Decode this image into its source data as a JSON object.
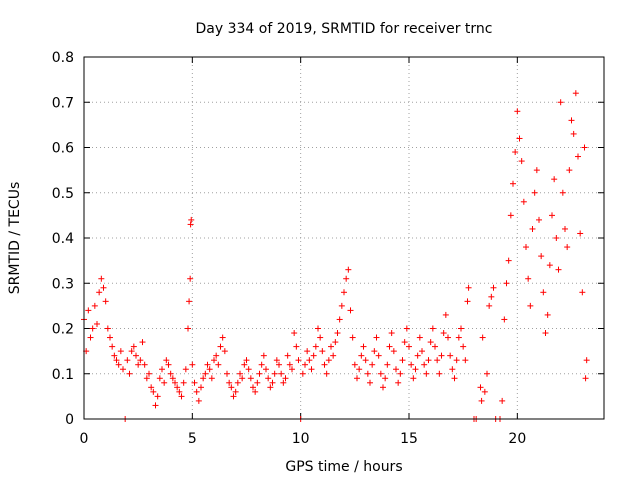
{
  "chart_data": {
    "type": "scatter",
    "title": "Day 334 of 2019, SRMTID for receiver trnc",
    "xlabel": "GPS time / hours",
    "ylabel": "SRMTID / TECUs",
    "xlim": [
      0,
      24
    ],
    "ylim": [
      0,
      0.8
    ],
    "xticks": [
      0,
      5,
      10,
      15,
      20
    ],
    "yticks": [
      0,
      0.1,
      0.2,
      0.3,
      0.4,
      0.5,
      0.6,
      0.7,
      0.8
    ],
    "xtick_labels": [
      "0",
      "5",
      "10",
      "15",
      "20"
    ],
    "ytick_labels": [
      "0",
      "0.1",
      "0.2",
      "0.3",
      "0.4",
      "0.5",
      "0.6",
      "0.7",
      "0.8"
    ],
    "grid": true,
    "marker": "+",
    "color": "#ff0000",
    "series": [
      {
        "name": "SRMTID",
        "points": [
          [
            0.0,
            0.22
          ],
          [
            0.1,
            0.15
          ],
          [
            0.2,
            0.24
          ],
          [
            0.3,
            0.18
          ],
          [
            0.4,
            0.2
          ],
          [
            0.5,
            0.25
          ],
          [
            0.6,
            0.21
          ],
          [
            0.7,
            0.28
          ],
          [
            0.8,
            0.31
          ],
          [
            0.9,
            0.29
          ],
          [
            1.0,
            0.26
          ],
          [
            1.1,
            0.2
          ],
          [
            1.2,
            0.18
          ],
          [
            1.3,
            0.16
          ],
          [
            1.4,
            0.14
          ],
          [
            1.5,
            0.13
          ],
          [
            1.6,
            0.12
          ],
          [
            1.7,
            0.15
          ],
          [
            1.8,
            0.11
          ],
          [
            1.9,
            0.0
          ],
          [
            2.0,
            0.13
          ],
          [
            2.1,
            0.1
          ],
          [
            2.2,
            0.15
          ],
          [
            2.3,
            0.16
          ],
          [
            2.4,
            0.14
          ],
          [
            2.5,
            0.12
          ],
          [
            2.6,
            0.13
          ],
          [
            2.7,
            0.17
          ],
          [
            2.8,
            0.12
          ],
          [
            2.9,
            0.09
          ],
          [
            3.0,
            0.1
          ],
          [
            3.1,
            0.07
          ],
          [
            3.2,
            0.06
          ],
          [
            3.3,
            0.03
          ],
          [
            3.4,
            0.05
          ],
          [
            3.5,
            0.09
          ],
          [
            3.6,
            0.11
          ],
          [
            3.7,
            0.08
          ],
          [
            3.8,
            0.13
          ],
          [
            3.9,
            0.12
          ],
          [
            4.0,
            0.1
          ],
          [
            4.1,
            0.09
          ],
          [
            4.2,
            0.08
          ],
          [
            4.3,
            0.07
          ],
          [
            4.4,
            0.06
          ],
          [
            4.5,
            0.05
          ],
          [
            4.6,
            0.08
          ],
          [
            4.7,
            0.11
          ],
          [
            4.8,
            0.2
          ],
          [
            4.85,
            0.26
          ],
          [
            4.9,
            0.31
          ],
          [
            4.92,
            0.43
          ],
          [
            4.95,
            0.44
          ],
          [
            5.0,
            0.12
          ],
          [
            5.1,
            0.08
          ],
          [
            5.2,
            0.06
          ],
          [
            5.3,
            0.04
          ],
          [
            5.4,
            0.07
          ],
          [
            5.5,
            0.09
          ],
          [
            5.6,
            0.1
          ],
          [
            5.7,
            0.12
          ],
          [
            5.8,
            0.11
          ],
          [
            5.9,
            0.09
          ],
          [
            6.0,
            0.13
          ],
          [
            6.1,
            0.14
          ],
          [
            6.2,
            0.12
          ],
          [
            6.3,
            0.16
          ],
          [
            6.4,
            0.18
          ],
          [
            6.5,
            0.15
          ],
          [
            6.6,
            0.1
          ],
          [
            6.7,
            0.08
          ],
          [
            6.8,
            0.07
          ],
          [
            6.9,
            0.05
          ],
          [
            7.0,
            0.06
          ],
          [
            7.1,
            0.08
          ],
          [
            7.2,
            0.1
          ],
          [
            7.3,
            0.09
          ],
          [
            7.4,
            0.12
          ],
          [
            7.5,
            0.13
          ],
          [
            7.6,
            0.11
          ],
          [
            7.7,
            0.09
          ],
          [
            7.8,
            0.07
          ],
          [
            7.9,
            0.06
          ],
          [
            8.0,
            0.08
          ],
          [
            8.1,
            0.1
          ],
          [
            8.2,
            0.12
          ],
          [
            8.3,
            0.14
          ],
          [
            8.4,
            0.11
          ],
          [
            8.5,
            0.09
          ],
          [
            8.6,
            0.07
          ],
          [
            8.7,
            0.08
          ],
          [
            8.8,
            0.1
          ],
          [
            8.9,
            0.13
          ],
          [
            9.0,
            0.12
          ],
          [
            9.1,
            0.1
          ],
          [
            9.2,
            0.08
          ],
          [
            9.3,
            0.09
          ],
          [
            9.4,
            0.14
          ],
          [
            9.5,
            0.12
          ],
          [
            9.6,
            0.11
          ],
          [
            9.7,
            0.19
          ],
          [
            9.8,
            0.16
          ],
          [
            9.9,
            0.13
          ],
          [
            10.0,
            0.0
          ],
          [
            10.1,
            0.1
          ],
          [
            10.2,
            0.12
          ],
          [
            10.3,
            0.15
          ],
          [
            10.4,
            0.13
          ],
          [
            10.5,
            0.11
          ],
          [
            10.6,
            0.14
          ],
          [
            10.7,
            0.16
          ],
          [
            10.8,
            0.2
          ],
          [
            10.9,
            0.18
          ],
          [
            11.0,
            0.15
          ],
          [
            11.1,
            0.12
          ],
          [
            11.2,
            0.1
          ],
          [
            11.3,
            0.13
          ],
          [
            11.4,
            0.16
          ],
          [
            11.5,
            0.14
          ],
          [
            11.6,
            0.17
          ],
          [
            11.7,
            0.19
          ],
          [
            11.8,
            0.22
          ],
          [
            11.9,
            0.25
          ],
          [
            12.0,
            0.28
          ],
          [
            12.1,
            0.31
          ],
          [
            12.2,
            0.33
          ],
          [
            12.3,
            0.24
          ],
          [
            12.4,
            0.18
          ],
          [
            12.5,
            0.12
          ],
          [
            12.6,
            0.09
          ],
          [
            12.7,
            0.11
          ],
          [
            12.8,
            0.14
          ],
          [
            12.9,
            0.16
          ],
          [
            13.0,
            0.13
          ],
          [
            13.1,
            0.1
          ],
          [
            13.2,
            0.08
          ],
          [
            13.3,
            0.12
          ],
          [
            13.4,
            0.15
          ],
          [
            13.5,
            0.18
          ],
          [
            13.6,
            0.14
          ],
          [
            13.7,
            0.1
          ],
          [
            13.8,
            0.07
          ],
          [
            13.9,
            0.09
          ],
          [
            14.0,
            0.12
          ],
          [
            14.1,
            0.16
          ],
          [
            14.2,
            0.19
          ],
          [
            14.3,
            0.15
          ],
          [
            14.4,
            0.11
          ],
          [
            14.5,
            0.08
          ],
          [
            14.6,
            0.1
          ],
          [
            14.7,
            0.13
          ],
          [
            14.8,
            0.17
          ],
          [
            14.9,
            0.2
          ],
          [
            15.0,
            0.16
          ],
          [
            15.1,
            0.12
          ],
          [
            15.2,
            0.09
          ],
          [
            15.3,
            0.11
          ],
          [
            15.4,
            0.14
          ],
          [
            15.5,
            0.18
          ],
          [
            15.6,
            0.15
          ],
          [
            15.7,
            0.12
          ],
          [
            15.8,
            0.1
          ],
          [
            15.9,
            0.13
          ],
          [
            16.0,
            0.17
          ],
          [
            16.1,
            0.2
          ],
          [
            16.2,
            0.16
          ],
          [
            16.3,
            0.13
          ],
          [
            16.4,
            0.1
          ],
          [
            16.5,
            0.14
          ],
          [
            16.6,
            0.19
          ],
          [
            16.7,
            0.23
          ],
          [
            16.8,
            0.18
          ],
          [
            16.9,
            0.14
          ],
          [
            17.0,
            0.11
          ],
          [
            17.1,
            0.09
          ],
          [
            17.2,
            0.13
          ],
          [
            17.3,
            0.18
          ],
          [
            17.4,
            0.2
          ],
          [
            17.5,
            0.16
          ],
          [
            17.6,
            0.13
          ],
          [
            17.7,
            0.26
          ],
          [
            17.75,
            0.29
          ],
          [
            18.0,
            0.0
          ],
          [
            18.1,
            0.0
          ],
          [
            18.3,
            0.07
          ],
          [
            18.35,
            0.04
          ],
          [
            18.4,
            0.18
          ],
          [
            18.5,
            0.06
          ],
          [
            18.6,
            0.1
          ],
          [
            18.7,
            0.25
          ],
          [
            18.8,
            0.27
          ],
          [
            18.9,
            0.29
          ],
          [
            19.0,
            0.0
          ],
          [
            19.2,
            0.0
          ],
          [
            19.3,
            0.04
          ],
          [
            19.4,
            0.22
          ],
          [
            19.5,
            0.3
          ],
          [
            19.6,
            0.35
          ],
          [
            19.7,
            0.45
          ],
          [
            19.8,
            0.52
          ],
          [
            19.9,
            0.59
          ],
          [
            20.0,
            0.68
          ],
          [
            20.1,
            0.62
          ],
          [
            20.2,
            0.57
          ],
          [
            20.3,
            0.48
          ],
          [
            20.4,
            0.38
          ],
          [
            20.5,
            0.31
          ],
          [
            20.6,
            0.25
          ],
          [
            20.7,
            0.42
          ],
          [
            20.8,
            0.5
          ],
          [
            20.9,
            0.55
          ],
          [
            21.0,
            0.44
          ],
          [
            21.1,
            0.36
          ],
          [
            21.2,
            0.28
          ],
          [
            21.3,
            0.19
          ],
          [
            21.4,
            0.23
          ],
          [
            21.5,
            0.34
          ],
          [
            21.6,
            0.45
          ],
          [
            21.7,
            0.53
          ],
          [
            21.8,
            0.4
          ],
          [
            21.9,
            0.33
          ],
          [
            22.0,
            0.7
          ],
          [
            22.1,
            0.5
          ],
          [
            22.2,
            0.42
          ],
          [
            22.3,
            0.38
          ],
          [
            22.4,
            0.55
          ],
          [
            22.5,
            0.66
          ],
          [
            22.6,
            0.63
          ],
          [
            22.7,
            0.72
          ],
          [
            22.8,
            0.58
          ],
          [
            22.9,
            0.41
          ],
          [
            23.0,
            0.28
          ],
          [
            23.1,
            0.6
          ],
          [
            23.15,
            0.09
          ],
          [
            23.2,
            0.13
          ]
        ]
      }
    ]
  }
}
